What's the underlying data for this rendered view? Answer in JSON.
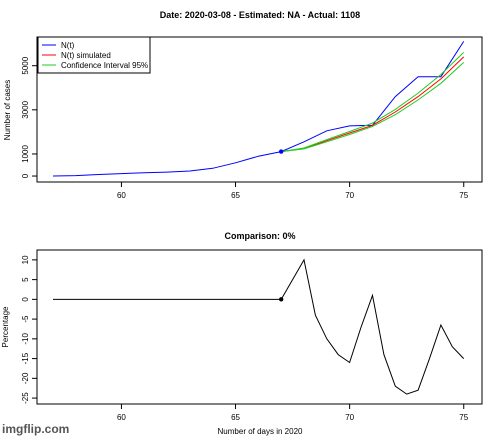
{
  "chart_data": [
    {
      "type": "line",
      "title": "Date: 2020-03-08 - Estimated: NA - Actual: 1108",
      "y_label": "Number of cases",
      "x": [
        57,
        58,
        59,
        60,
        61,
        62,
        63,
        64,
        65,
        66,
        67,
        68,
        69,
        70,
        71,
        72,
        73,
        74,
        75
      ],
      "series": [
        {
          "name": "N(t)",
          "color": "#0000ff",
          "values": [
            2,
            20,
            70,
            110,
            150,
            180,
            230,
            350,
            600,
            900,
            1108,
            1550,
            2050,
            2270,
            2300,
            3600,
            4500,
            4500,
            6100
          ]
        },
        {
          "name": "N(t) simulated",
          "color": "#ff0000",
          "values": [
            null,
            null,
            null,
            null,
            null,
            null,
            null,
            null,
            null,
            null,
            1108,
            1250,
            1600,
            1950,
            2300,
            2900,
            3600,
            4400,
            5400
          ]
        },
        {
          "name": "Confidence Interval 95%",
          "color": "#22cc22",
          "lower": [
            null,
            null,
            null,
            null,
            null,
            null,
            null,
            null,
            null,
            null,
            1108,
            1230,
            1550,
            1880,
            2250,
            2780,
            3450,
            4200,
            5150
          ],
          "upper": [
            null,
            null,
            null,
            null,
            null,
            null,
            null,
            null,
            null,
            null,
            1108,
            1270,
            1650,
            2020,
            2400,
            3020,
            3760,
            4600,
            5600
          ]
        }
      ],
      "xlim": [
        56.3,
        75.8
      ],
      "xticks": [
        60,
        65,
        70,
        75
      ],
      "ylim": [
        -270,
        6300
      ],
      "yticks": [
        0,
        1000,
        3000,
        5000
      ],
      "legend": "top-left"
    },
    {
      "type": "line",
      "title": "Comparison: 0%",
      "y_label": "Percentage",
      "x_label": "Number of days in 2020",
      "x": [
        57,
        58,
        59,
        60,
        61,
        62,
        63,
        64,
        65,
        66,
        67,
        68,
        68.5,
        69,
        69.5,
        70,
        70.5,
        71,
        71.5,
        72,
        72.5,
        73,
        73.5,
        74,
        74.5,
        75
      ],
      "series": [
        {
          "color": "#000000",
          "values": [
            0,
            0,
            0,
            0,
            0,
            0,
            0,
            0,
            0,
            0,
            0,
            10,
            -4,
            -10,
            -14,
            -16,
            -7,
            1,
            -14,
            -22,
            -24,
            -23,
            -15,
            -6.5,
            -12,
            -15
          ]
        }
      ],
      "xlim": [
        56.3,
        75.8
      ],
      "xticks": [
        60,
        65,
        70,
        75
      ],
      "ylim": [
        -26.5,
        12.5
      ],
      "yticks": [
        10,
        5,
        0,
        -5,
        -10,
        -15,
        -20,
        -25
      ]
    }
  ],
  "watermark": "imgflip.com"
}
